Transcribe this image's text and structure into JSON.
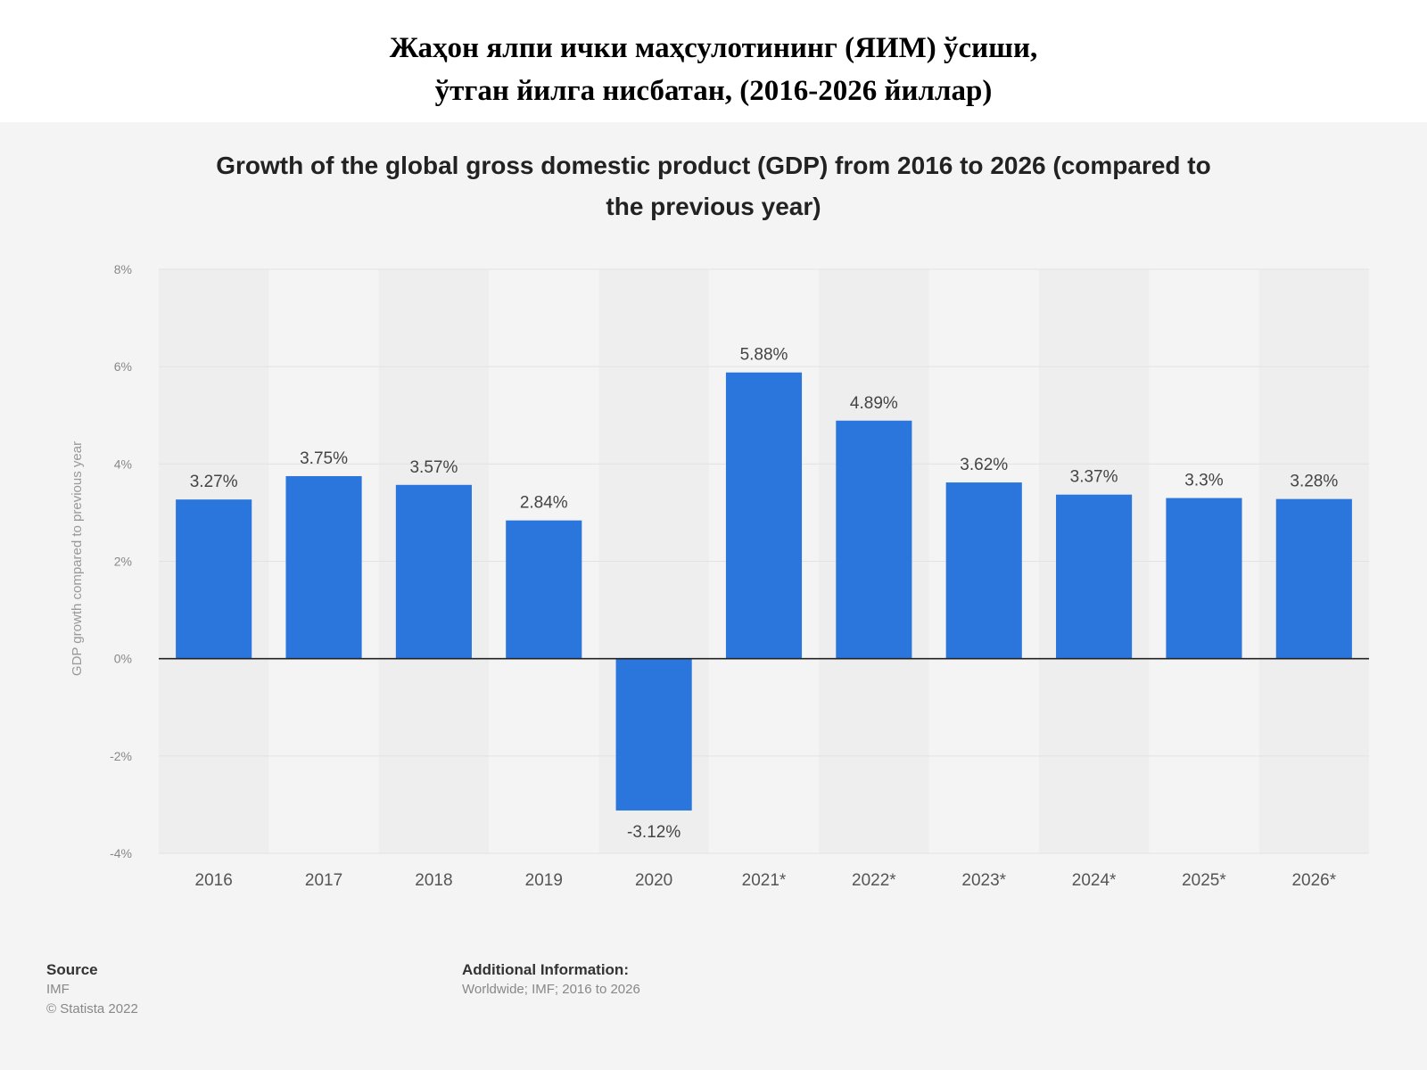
{
  "slide_title": {
    "line1": "Жаҳон ялпи ички маҳсулотининг (ЯИМ) ўсиши,",
    "line2": "ўтган йилга нисбатан, (2016-2026 йиллар)"
  },
  "chart_data": {
    "type": "bar",
    "title": "Growth of the global gross domestic product (GDP) from 2016 to 2026 (compared to the previous year)",
    "title_lines": [
      "Growth of the global gross domestic product (GDP) from 2016 to 2026 (compared to",
      "the previous year)"
    ],
    "ylabel": "GDP growth compared to previous year",
    "xlabel": "",
    "categories": [
      "2016",
      "2017",
      "2018",
      "2019",
      "2020",
      "2021*",
      "2022*",
      "2023*",
      "2024*",
      "2025*",
      "2026*"
    ],
    "values": [
      3.27,
      3.75,
      3.57,
      2.84,
      -3.12,
      5.88,
      4.89,
      3.62,
      3.37,
      3.3,
      3.28
    ],
    "value_labels": [
      "3.27%",
      "3.75%",
      "3.57%",
      "2.84%",
      "-3.12%",
      "5.88%",
      "4.89%",
      "3.62%",
      "3.37%",
      "3.3%",
      "3.28%"
    ],
    "yticks": [
      8,
      6,
      4,
      2,
      0,
      -2,
      -4
    ],
    "ytick_labels": [
      "8%",
      "6%",
      "4%",
      "2%",
      "0%",
      "-2%",
      "-4%"
    ],
    "ylim": [
      -4,
      8
    ],
    "grid": true,
    "legend": "none",
    "bar_color": "#2a76dd"
  },
  "footer": {
    "source_heading": "Source",
    "source_name": "IMF",
    "copyright": "© Statista 2022",
    "additional_heading": "Additional Information:",
    "additional_text": "Worldwide; IMF; 2016 to 2026"
  }
}
